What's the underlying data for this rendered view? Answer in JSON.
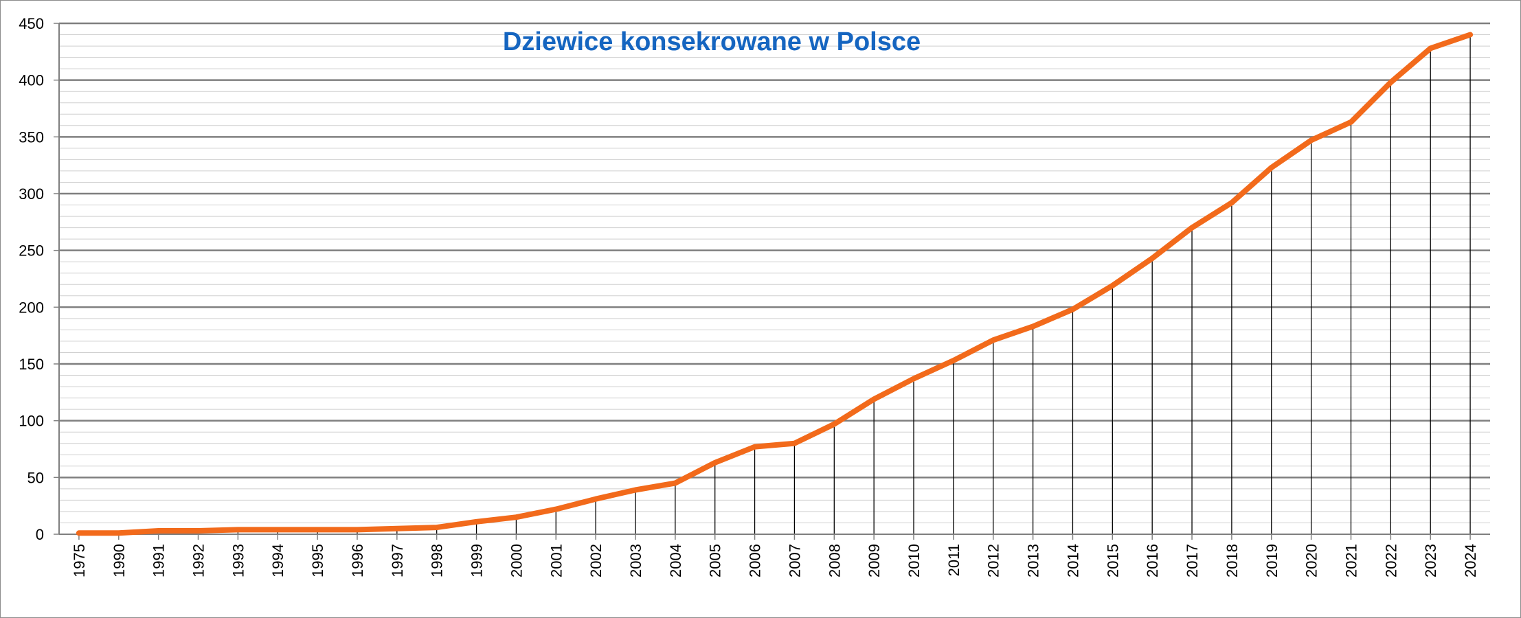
{
  "chart_data": {
    "type": "line",
    "title": "Dziewice konsekrowane w Polsce",
    "xlabel": "",
    "ylabel": "",
    "categories": [
      "1975",
      "1990",
      "1991",
      "1992",
      "1993",
      "1994",
      "1995",
      "1996",
      "1997",
      "1998",
      "1999",
      "2000",
      "2001",
      "2002",
      "2003",
      "2004",
      "2005",
      "2006",
      "2007",
      "2008",
      "2009",
      "2010",
      "2011",
      "2012",
      "2013",
      "2014",
      "2015",
      "2016",
      "2017",
      "2018",
      "2019",
      "2020",
      "2021",
      "2022",
      "2023",
      "2024"
    ],
    "series": [
      {
        "values": [
          1,
          1,
          3,
          3,
          4,
          4,
          4,
          4,
          5,
          6,
          11,
          15,
          22,
          31,
          39,
          45,
          63,
          77,
          80,
          97,
          119,
          137,
          153,
          171,
          183,
          198,
          219,
          243,
          270,
          292,
          323,
          347,
          363,
          398,
          428,
          440
        ]
      }
    ],
    "ylim": [
      0,
      450
    ],
    "y_major_ticks": [
      0,
      50,
      100,
      150,
      200,
      250,
      300,
      350,
      400,
      450
    ],
    "y_minor_step": 10,
    "grid": true,
    "drop_lines": true,
    "legend": "none",
    "colors": {
      "line": "#f26a1b",
      "title": "#1565c0",
      "major_grid": "#7f7f7f",
      "minor_grid": "#cfcfcf",
      "drop_line": "#000000"
    }
  }
}
